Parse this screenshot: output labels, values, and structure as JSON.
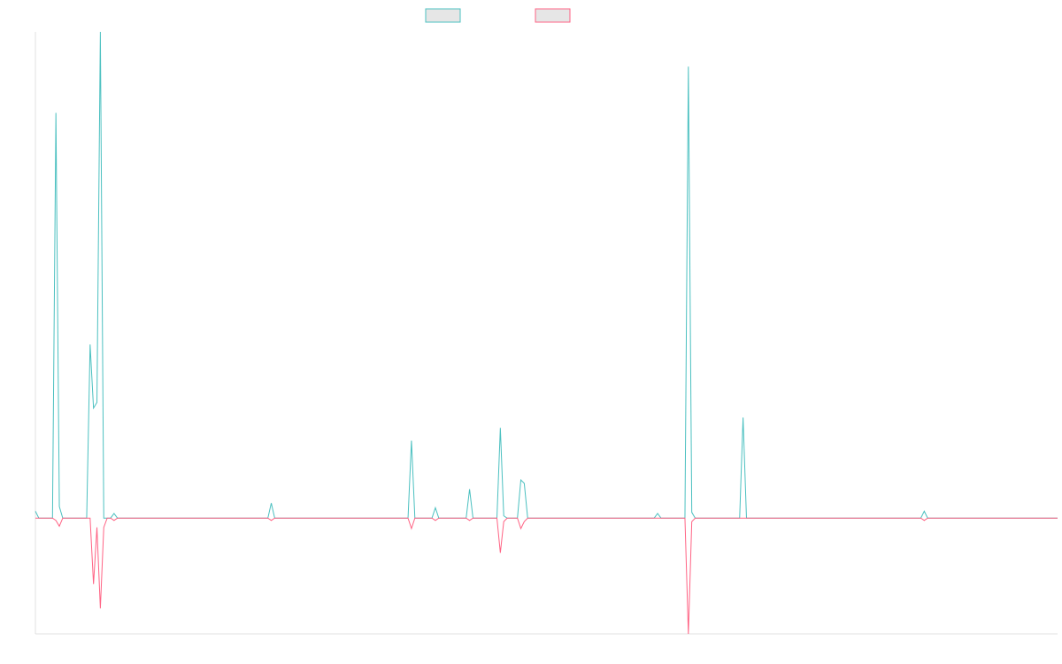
{
  "chart_data": {
    "type": "line",
    "title": "",
    "xlabel": "",
    "ylabel": "",
    "grid": false,
    "legend_position": "top-center",
    "ylim": [
      -100,
      420
    ],
    "n_points": 300,
    "series": [
      {
        "color": "#4bc0c0",
        "fill": "#e6e6e6",
        "spikes": [
          [
            0,
            6
          ],
          [
            6,
            350
          ],
          [
            7,
            10
          ],
          [
            15,
            0
          ],
          [
            16,
            150
          ],
          [
            17,
            95
          ],
          [
            18,
            100
          ],
          [
            19,
            420
          ],
          [
            20,
            0
          ],
          [
            23,
            4
          ],
          [
            69,
            13
          ],
          [
            110,
            67
          ],
          [
            117,
            9
          ],
          [
            127,
            25
          ],
          [
            136,
            78
          ],
          [
            137,
            2
          ],
          [
            142,
            33
          ],
          [
            143,
            30
          ],
          [
            182,
            4
          ],
          [
            191,
            390
          ],
          [
            192,
            5
          ],
          [
            207,
            87
          ],
          [
            260,
            6
          ]
        ]
      },
      {
        "color": "#ff6384",
        "fill": "#e6e6e6",
        "spikes": [
          [
            6,
            -2
          ],
          [
            7,
            -7
          ],
          [
            17,
            -57
          ],
          [
            18,
            -8
          ],
          [
            19,
            -78
          ],
          [
            20,
            -8
          ],
          [
            23,
            -2
          ],
          [
            69,
            -2
          ],
          [
            110,
            -9
          ],
          [
            117,
            -2
          ],
          [
            127,
            -2
          ],
          [
            136,
            -30
          ],
          [
            137,
            -3
          ],
          [
            142,
            -9
          ],
          [
            143,
            -3
          ],
          [
            191,
            -100
          ],
          [
            192,
            -3
          ],
          [
            260,
            -2
          ]
        ]
      }
    ]
  }
}
